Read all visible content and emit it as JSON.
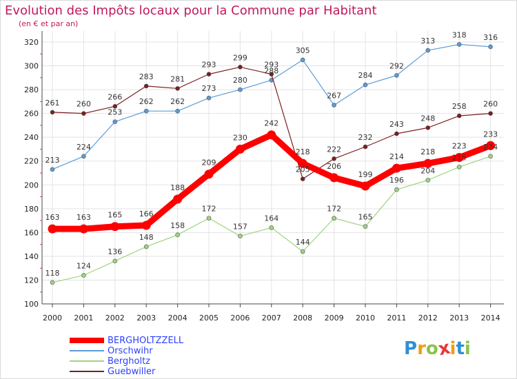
{
  "title": "Evolution des Impôts locaux pour la Commune par Habitant",
  "subtitle": "(en € et par an)",
  "logo": {
    "letters": [
      "P",
      "r",
      "o",
      "x",
      "i",
      "t",
      "i"
    ],
    "colors": [
      "#2f8fd8",
      "#f39c12",
      "#8bc34a",
      "#e53935",
      "#f39c12",
      "#2f8fd8",
      "#8bc34a"
    ]
  },
  "chart_data": {
    "type": "line",
    "title": "Evolution des Impôts locaux pour la Commune par Habitant",
    "subtitle": "(en € et par an)",
    "xlabel": "",
    "ylabel": "",
    "x": [
      "2000",
      "2001",
      "2002",
      "2003",
      "2004",
      "2005",
      "2006",
      "2007",
      "2008",
      "2009",
      "2010",
      "2011",
      "2012",
      "2013",
      "2014"
    ],
    "ylim": [
      100,
      320
    ],
    "yticks": [
      100,
      120,
      140,
      160,
      180,
      200,
      220,
      240,
      260,
      280,
      300,
      320
    ],
    "grid": true,
    "legend_position": "bottom-left",
    "series": [
      {
        "name": "BERGHOLTZZELL",
        "color": "#ff0000",
        "values": [
          163,
          163,
          165,
          166,
          188,
          209,
          230,
          242,
          218,
          206,
          199,
          214,
          218,
          223,
          233
        ]
      },
      {
        "name": "Orschwihr",
        "color": "#5b9bd5",
        "values": [
          213,
          224,
          253,
          262,
          262,
          273,
          280,
          288,
          305,
          267,
          284,
          292,
          313,
          318,
          316
        ]
      },
      {
        "name": "Bergholtz",
        "color": "#9fd37f",
        "values": [
          118,
          124,
          136,
          148,
          158,
          172,
          157,
          164,
          144,
          172,
          165,
          196,
          204,
          215,
          224
        ]
      },
      {
        "name": "Guebwiller",
        "color": "#7b1e1e",
        "values": [
          261,
          260,
          266,
          283,
          281,
          293,
          299,
          293,
          205,
          222,
          232,
          243,
          248,
          258,
          260
        ]
      }
    ]
  }
}
